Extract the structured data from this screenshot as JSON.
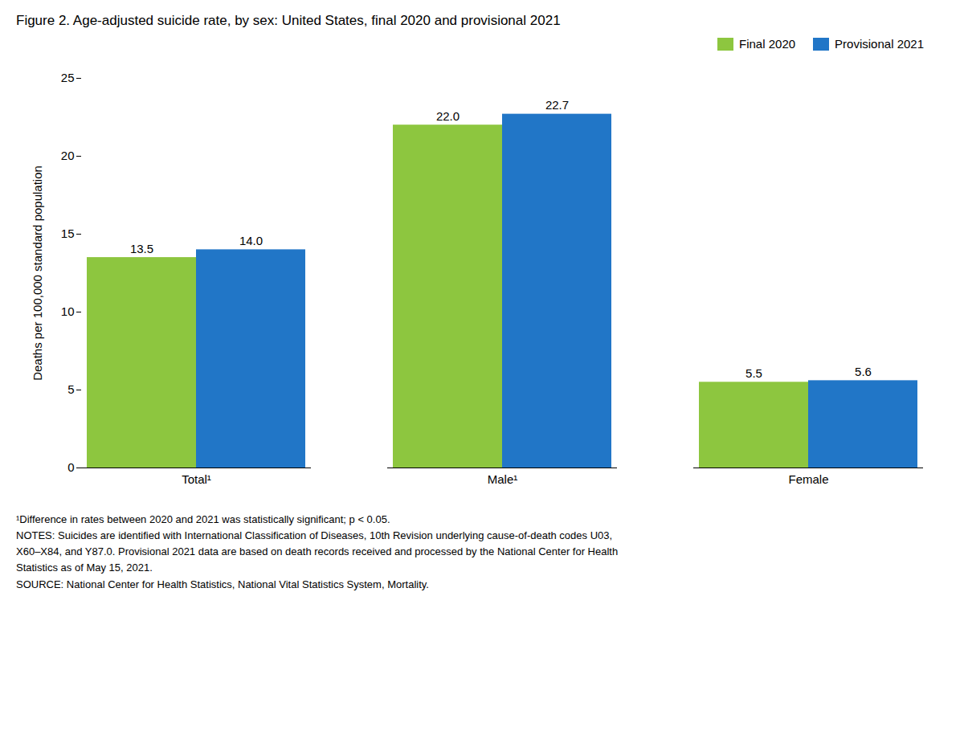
{
  "chart_data": {
    "type": "bar",
    "title": "Figure 2. Age-adjusted suicide rate, by sex: United States, final 2020 and provisional 2021",
    "categories": [
      "Total¹",
      "Male¹",
      "Female"
    ],
    "series": [
      {
        "name": "Final 2020",
        "color": "#8dc63f",
        "values": [
          13.5,
          22.0,
          5.5
        ],
        "value_labels": [
          "13.5",
          "22.0",
          "5.5"
        ]
      },
      {
        "name": "Provisional 2021",
        "color": "#2176c7",
        "values": [
          14.0,
          22.7,
          5.6
        ],
        "value_labels": [
          "14.0",
          "22.7",
          "5.6"
        ]
      }
    ],
    "ylabel": "Deaths per 100,000 standard population",
    "ylim": [
      0,
      25
    ],
    "yticks": [
      0,
      5,
      10,
      15,
      20,
      25
    ],
    "grid": false,
    "legend": "upper right",
    "data_labels": true,
    "annotations": [
      "¹Difference in rates between 2020 and 2021 was statistically significant; p < 0.05.",
      "NOTES: Suicides are identified with International Classification of Diseases, 10th Revision underlying cause-of-death codes U03,",
      "X60–X84, and Y87.0. Provisional 2021 data are based on death records received and processed by the National Center for Health",
      "Statistics as of May 15, 2021.",
      "SOURCE: National Center for Health Statistics, National Vital Statistics System, Mortality."
    ]
  }
}
